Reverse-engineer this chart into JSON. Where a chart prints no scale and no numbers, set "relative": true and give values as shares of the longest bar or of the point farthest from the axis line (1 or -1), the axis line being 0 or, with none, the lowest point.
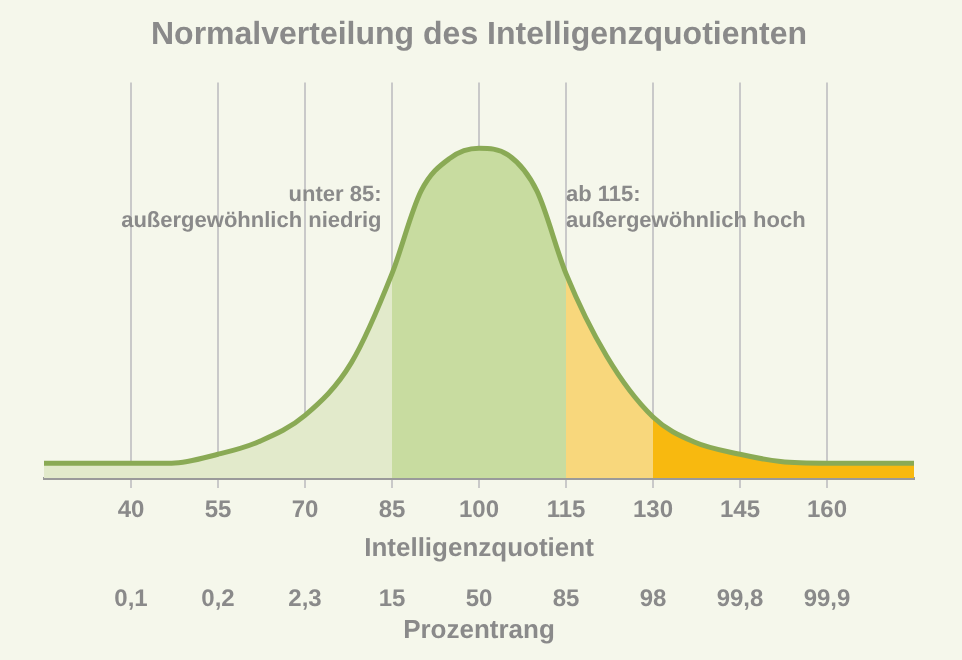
{
  "chart_data": {
    "type": "area",
    "title": "Normalverteilung des Intelligenzquotienten",
    "xlabel": "Intelligenzquotient",
    "relative": true,
    "xlim": [
      25,
      175
    ],
    "xticks": [
      40,
      55,
      70,
      85,
      100,
      115,
      130,
      145,
      160
    ],
    "grid": "x",
    "series": [
      {
        "color": "#e2eacb",
        "x": [
          25,
          40,
          47,
          55,
          62,
          70,
          78,
          85
        ],
        "values": [
          0.045,
          0.045,
          0.045,
          0.072,
          0.11,
          0.19,
          0.35,
          0.62
        ]
      },
      {
        "color": "#c8dca0",
        "x": [
          85,
          90,
          95,
          100,
          105,
          110,
          115
        ],
        "values": [
          0.62,
          0.87,
          0.97,
          1,
          0.98,
          0.87,
          0.62
        ]
      },
      {
        "color": "#f8d77c",
        "x": [
          115,
          122,
          130
        ],
        "values": [
          0.62,
          0.37,
          0.185
        ]
      },
      {
        "color": "#f8b90f",
        "x": [
          130,
          137,
          145,
          152,
          160,
          175
        ],
        "values": [
          0.185,
          0.11,
          0.072,
          0.05,
          0.045,
          0.045
        ]
      },
      {
        "type": "line",
        "color": "#8aaa55",
        "x": [
          25,
          40,
          47,
          55,
          62,
          70,
          78,
          85,
          90,
          95,
          100,
          105,
          110,
          115,
          122,
          130,
          137,
          145,
          152,
          160,
          175
        ],
        "values": [
          0.045,
          0.045,
          0.045,
          0.072,
          0.11,
          0.19,
          0.35,
          0.62,
          0.87,
          0.97,
          1,
          0.98,
          0.87,
          0.62,
          0.37,
          0.185,
          0.11,
          0.072,
          0.05,
          0.045,
          0.045
        ]
      }
    ],
    "annotations": [
      "unter 85:\naußergewöhnlich niedrig",
      "ab 115:\naußergewöhnlich hoch",
      "0,1",
      "0,2",
      "2,3",
      "15",
      "50",
      "85",
      "98",
      "99,8",
      "99,9",
      "Prozentrang"
    ]
  }
}
